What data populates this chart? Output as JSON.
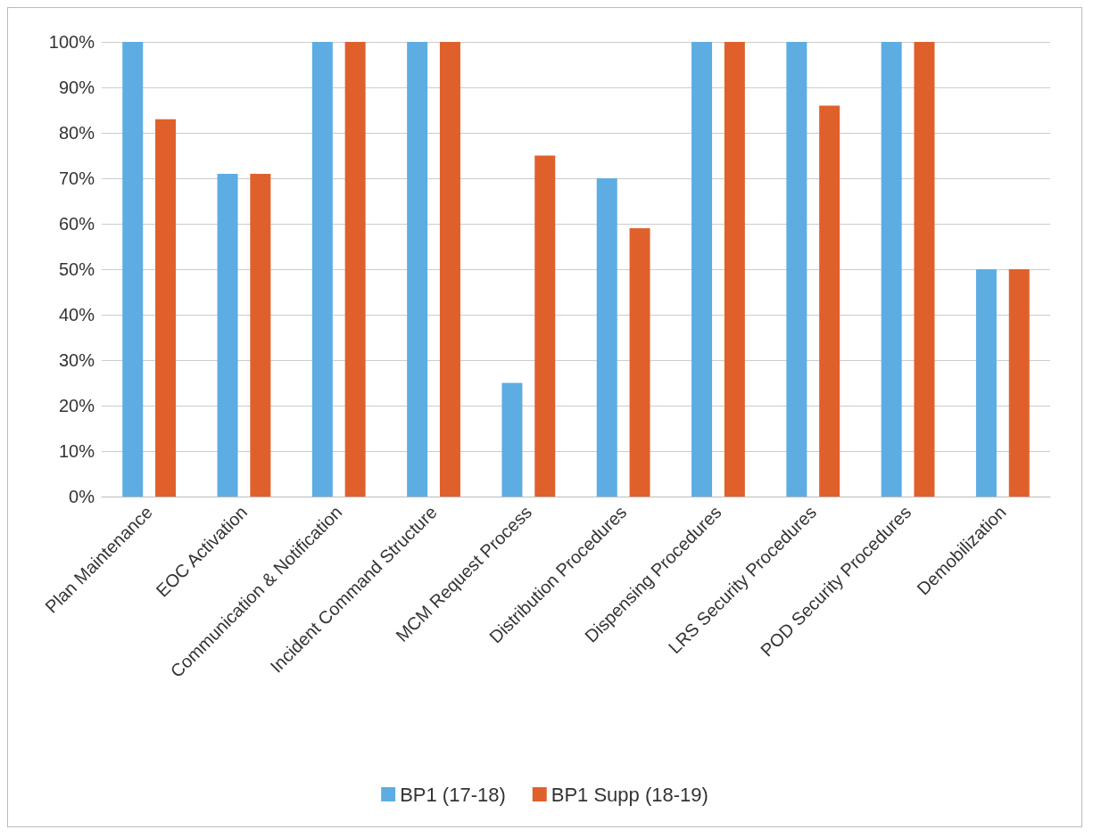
{
  "chart_data": {
    "type": "bar",
    "categories": [
      "Plan Maintenance",
      "EOC Activation",
      "Communication & Notification",
      "Incident Command Structure",
      "MCM Request Process",
      "Distribution Procedures",
      "Dispensing Procedures",
      "LRS Security Procedures",
      "POD Security Procedures",
      "Demobilization"
    ],
    "series": [
      {
        "name": "BP1 (17-18)",
        "color": "#5dade2",
        "values": [
          100,
          71,
          100,
          100,
          25,
          70,
          100,
          100,
          100,
          50
        ]
      },
      {
        "name": "BP1 Supp (18-19)",
        "color": "#e0602c",
        "values": [
          83,
          71,
          100,
          100,
          75,
          59,
          100,
          86,
          100,
          50
        ]
      }
    ],
    "ylim": [
      0,
      100
    ],
    "yticks": [
      {
        "value": 0,
        "label": "0%"
      },
      {
        "value": 10,
        "label": "10%"
      },
      {
        "value": 20,
        "label": "20%"
      },
      {
        "value": 30,
        "label": "30%"
      },
      {
        "value": 40,
        "label": "40%"
      },
      {
        "value": 50,
        "label": "50%"
      },
      {
        "value": 60,
        "label": "60%"
      },
      {
        "value": 70,
        "label": "70%"
      },
      {
        "value": 80,
        "label": "80%"
      },
      {
        "value": 90,
        "label": "90%"
      },
      {
        "value": 100,
        "label": "100%"
      }
    ],
    "grid": "y",
    "legend": "bottom"
  }
}
